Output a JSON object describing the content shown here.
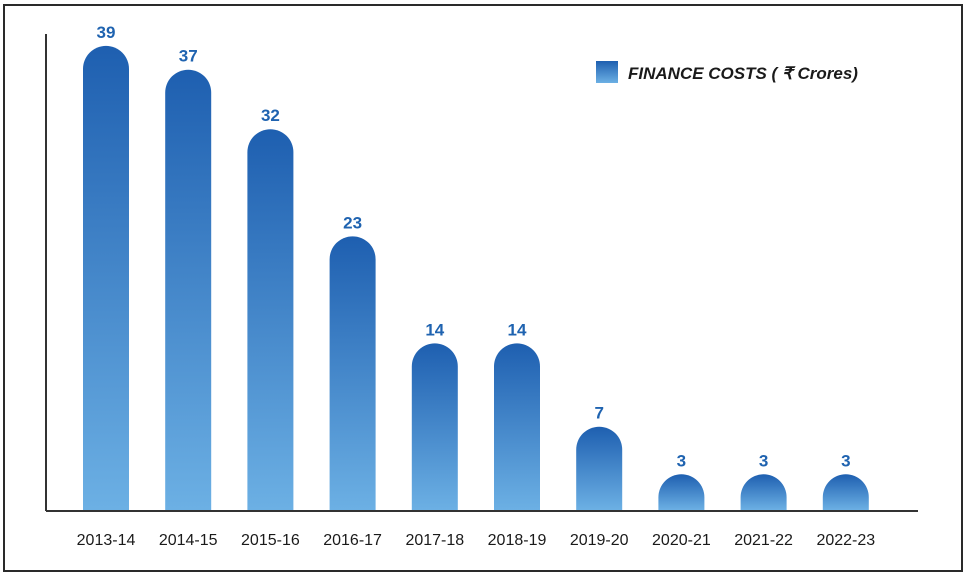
{
  "chart_data": {
    "type": "bar",
    "categories": [
      "2013-14",
      "2014-15",
      "2015-16",
      "2016-17",
      "2017-18",
      "2018-19",
      "2019-20",
      "2020-21",
      "2021-22",
      "2022-23"
    ],
    "series": [
      {
        "name": "FINANCE COSTS ( ₹  Crores)",
        "values": [
          39,
          37,
          32,
          23,
          14,
          14,
          7,
          3,
          3,
          3
        ]
      }
    ],
    "title": "",
    "xlabel": "",
    "ylabel": "",
    "ylim": [
      0,
      40
    ],
    "grid": false,
    "legend_position": "top-right",
    "colors": {
      "bar_top": "#1e5fb0",
      "bar_bottom": "#6cb0e4",
      "label": "#1f63b0",
      "axis": "#333333"
    }
  }
}
